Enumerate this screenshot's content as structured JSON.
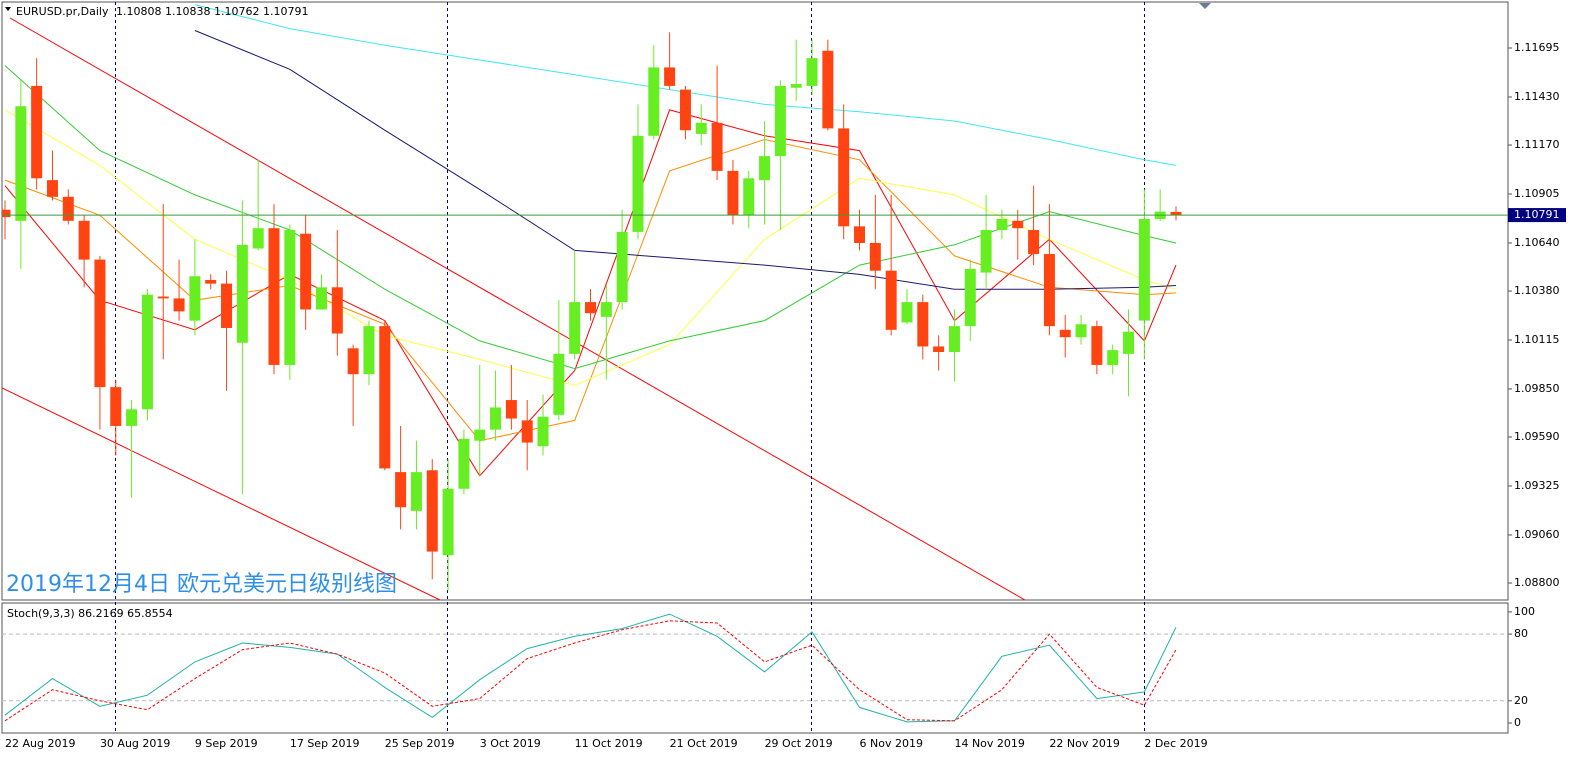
{
  "chart_data": [
    {
      "type": "candlestick",
      "symbol": "EURUSD.pr,Daily",
      "annotation": "2019年12月4日 欧元兑美元日级别线图",
      "categories": [
        "22 Aug 2019",
        null,
        null,
        null,
        null,
        null,
        "30 Aug 2019",
        null,
        null,
        null,
        null,
        null,
        "9 Sep 2019",
        null,
        null,
        null,
        null,
        null,
        "17 Sep 2019",
        null,
        null,
        null,
        null,
        null,
        "25 Sep 2019",
        null,
        null,
        null,
        null,
        null,
        "3 Oct 2019",
        null,
        null,
        null,
        null,
        null,
        "11 Oct 2019",
        null,
        null,
        null,
        null,
        null,
        "21 Oct 2019",
        null,
        null,
        null,
        null,
        null,
        "29 Oct 2019",
        null,
        null,
        null,
        null,
        null,
        "6 Nov 2019",
        null,
        null,
        null,
        null,
        null,
        "14 Nov 2019",
        null,
        null,
        null,
        null,
        null,
        "22 Nov 2019",
        null,
        null,
        null,
        null,
        null,
        "2 Dec 2019",
        null,
        null
      ],
      "open": [
        1.1082,
        1.1076,
        1.1149,
        1.1098,
        1.1089,
        1.1076,
        1.1055,
        1.0986,
        1.0965,
        1.0974,
        1.1035,
        1.1034,
        1.1022,
        1.1044,
        1.1042,
        1.101,
        1.1061,
        1.1072,
        1.0998,
        1.1069,
        1.1028,
        1.104,
        1.1007,
        1.0993,
        1.1019,
        1.094,
        1.0919,
        1.0941,
        1.0895,
        1.0931,
        1.0957,
        1.0963,
        1.0979,
        1.0968,
        1.0954,
        1.0971,
        1.1004,
        1.1032,
        1.1024,
        1.1032,
        1.107,
        1.1122,
        1.1159,
        1.1147,
        1.1123,
        1.1129,
        1.1103,
        1.1079,
        1.1098,
        1.1111,
        1.1148,
        1.1149,
        1.1168,
        1.1126,
        1.1073,
        1.1064,
        1.1049,
        1.1021,
        1.1032,
        1.1008,
        1.1005,
        1.1019,
        1.1048,
        1.1071,
        1.1076,
        1.1071,
        1.1058,
        1.1017,
        1.1013,
        1.1019,
        1.0998,
        1.1004,
        1.1022,
        1.1077,
        1.10808
      ],
      "high": [
        1.1087,
        1.1152,
        1.1164,
        1.1114,
        1.1093,
        1.1079,
        1.1057,
        1.099,
        1.0979,
        1.1039,
        1.1085,
        1.1055,
        1.1066,
        1.1047,
        1.1049,
        1.1087,
        1.1109,
        1.1085,
        1.1074,
        1.1079,
        1.1047,
        1.1071,
        1.1009,
        1.1022,
        1.1022,
        1.0965,
        1.0957,
        1.0947,
        1.0947,
        1.0963,
        1.0998,
        1.0995,
        1.0998,
        1.0979,
        1.0982,
        1.1033,
        1.106,
        1.1039,
        1.1041,
        1.1082,
        1.1139,
        1.1171,
        1.1178,
        1.1149,
        1.1139,
        1.116,
        1.1109,
        1.1103,
        1.113,
        1.1152,
        1.1174,
        1.1174,
        1.1174,
        1.1139,
        1.1082,
        1.109,
        1.109,
        1.1039,
        1.1036,
        1.1014,
        1.1028,
        1.1055,
        1.109,
        1.1082,
        1.1082,
        1.1095,
        1.1085,
        1.1025,
        1.1025,
        1.1022,
        1.1009,
        1.1028,
        1.1093,
        1.1093,
        1.10838
      ],
      "low": [
        1.1066,
        1.105,
        1.1093,
        1.1087,
        1.1074,
        1.104,
        1.0963,
        1.0949,
        1.0926,
        1.0968,
        1.1001,
        1.1022,
        1.1014,
        1.1039,
        1.0984,
        1.0928,
        1.106,
        1.0993,
        1.099,
        1.1017,
        1.1028,
        1.1003,
        1.0965,
        1.0987,
        1.0941,
        1.0909,
        1.0909,
        1.0882,
        1.0876,
        1.0928,
        1.0938,
        1.0957,
        1.0963,
        1.0941,
        1.0949,
        1.0968,
        1.1001,
        1.1022,
        1.099,
        1.1028,
        1.1066,
        1.112,
        1.1147,
        1.112,
        1.1117,
        1.1098,
        1.1074,
        1.1072,
        1.1074,
        1.1071,
        1.1141,
        1.1144,
        1.1125,
        1.1066,
        1.106,
        1.1039,
        1.1014,
        1.102,
        1.1001,
        1.0995,
        1.0989,
        1.1011,
        1.1039,
        1.1066,
        1.1055,
        1.1052,
        1.1014,
        1.1002,
        1.1009,
        1.0993,
        1.0993,
        1.0981,
        1.1001,
        1.1076,
        1.10762
      ],
      "close": [
        1.1078,
        1.1138,
        1.1099,
        1.1089,
        1.1076,
        1.1055,
        1.0986,
        1.0965,
        1.0974,
        1.1036,
        1.1034,
        1.1027,
        1.1046,
        1.1042,
        1.1018,
        1.1063,
        1.1072,
        1.0998,
        1.1071,
        1.1028,
        1.104,
        1.1015,
        1.0993,
        1.1019,
        1.0942,
        1.0921,
        1.094,
        1.0897,
        1.0931,
        1.0958,
        1.0963,
        1.0975,
        1.0969,
        1.0956,
        1.097,
        1.1004,
        1.1032,
        1.1026,
        1.1032,
        1.107,
        1.1122,
        1.1159,
        1.1149,
        1.1125,
        1.1129,
        1.1103,
        1.1079,
        1.1099,
        1.1111,
        1.1149,
        1.115,
        1.1164,
        1.1126,
        1.1073,
        1.1064,
        1.1049,
        1.1017,
        1.1032,
        1.1008,
        1.1005,
        1.1019,
        1.105,
        1.1071,
        1.1077,
        1.1072,
        1.1058,
        1.1019,
        1.1013,
        1.102,
        1.0998,
        1.1006,
        1.1016,
        1.1077,
        1.1081,
        1.10791
      ],
      "up_color": "#66ee22",
      "down_color": "#ff4411",
      "last_price_color": "#3a9a3a",
      "last_price_label_color": "#000080",
      "ylim": [
        1.08708,
        1.11944
      ],
      "yticks": [
        1.11695,
        {
          "value": 1.1143,
          "label": "1.11430"
        },
        {
          "value": 1.1117,
          "label": "1.11170"
        },
        1.10905,
        {
          "value": 1.1064,
          "label": "1.10640"
        },
        {
          "value": 1.1038,
          "label": "1.10380"
        },
        1.10115,
        {
          "value": 1.0985,
          "label": "1.09850"
        },
        {
          "value": 1.0959,
          "label": "1.09590"
        },
        1.09325,
        {
          "value": 1.0906,
          "label": "1.09060"
        },
        {
          "value": 1.088,
          "label": "1.08800"
        }
      ],
      "moving_averages": [
        {
          "color": "#ff0000",
          "x": [
            0,
            6,
            12,
            18,
            24,
            30,
            36,
            42,
            48,
            54,
            60,
            66,
            72,
            74
          ],
          "values": [
            1.1095,
            1.1033,
            1.1017,
            1.1047,
            1.1022,
            1.0938,
            1.0995,
            1.1136,
            1.1122,
            1.1114,
            1.1022,
            1.1066,
            1.1011,
            1.1052
          ]
        },
        {
          "color": "#ff8c00",
          "x": [
            0,
            6,
            12,
            18,
            24,
            30,
            36,
            42,
            48,
            54,
            60,
            66,
            72,
            74
          ],
          "values": [
            1.1098,
            1.1079,
            1.1033,
            1.1041,
            1.102,
            1.0957,
            1.0968,
            1.1103,
            1.112,
            1.1109,
            1.1057,
            1.104,
            1.1036,
            1.1037
          ]
        },
        {
          "color": "#ffff44",
          "x": [
            0,
            6,
            12,
            18,
            24,
            30,
            36,
            42,
            48,
            54,
            60,
            66,
            72,
            74
          ],
          "values": [
            1.1136,
            1.1106,
            1.1066,
            1.1044,
            1.1014,
            1.1001,
            1.0987,
            1.1009,
            1.1066,
            1.1099,
            1.109,
            1.1066,
            1.1044,
            1.1039
          ]
        },
        {
          "color": "#33cc33",
          "x": [
            0,
            6,
            12,
            18,
            24,
            30,
            36,
            42,
            48,
            54,
            60,
            66,
            72,
            74
          ],
          "values": [
            1.116,
            1.1114,
            1.109,
            1.1071,
            1.1039,
            1.1011,
            1.0996,
            1.1011,
            1.1022,
            1.1052,
            1.1063,
            1.1081,
            1.1068,
            1.1064
          ]
        },
        {
          "color": "#191970",
          "x": [
            0,
            6,
            12,
            18,
            24,
            30,
            36,
            42,
            48,
            54,
            60,
            66,
            72,
            74
          ],
          "values": [
            null,
            null,
            1.1179,
            1.1158,
            1.1125,
            1.1093,
            1.106,
            1.1056,
            1.1052,
            1.1047,
            1.1039,
            1.1039,
            1.104,
            1.1041
          ]
        },
        {
          "color": "#40e8f0",
          "x": [
            0,
            6,
            12,
            18,
            24,
            30,
            36,
            42,
            48,
            54,
            60,
            66,
            72,
            74
          ],
          "values": [
            null,
            null,
            1.1193,
            1.118,
            1.1171,
            1.1163,
            1.1155,
            1.1147,
            1.1139,
            1.1135,
            1.113,
            1.112,
            1.1109,
            1.1106
          ]
        }
      ]
    },
    {
      "type": "stochastic",
      "title": "Stoch(9,3,3)",
      "x": [
        0,
        3,
        6,
        9,
        12,
        15,
        18,
        21,
        24,
        27,
        30,
        33,
        36,
        39,
        42,
        45,
        48,
        51,
        54,
        57,
        60,
        63,
        66,
        69,
        72,
        74
      ],
      "series": [
        {
          "color": "#20b2aa",
          "dashed": false,
          "values": [
            7,
            40,
            15,
            25,
            55,
            72,
            68,
            62,
            32,
            5,
            39,
            67,
            78,
            85,
            98,
            78,
            46,
            82,
            14,
            1,
            2,
            60,
            70,
            22,
            28,
            86.2169
          ]
        },
        {
          "color": "#ff0000",
          "dashed": true,
          "values": [
            2,
            30,
            20,
            12,
            40,
            66,
            72,
            62,
            45,
            15,
            22,
            58,
            72,
            84,
            92,
            90,
            55,
            70,
            30,
            3,
            2,
            30,
            80,
            32,
            16,
            65.8554
          ]
        }
      ],
      "ylim": [
        -9,
        108
      ],
      "yticks": [
        100,
        80,
        20,
        0
      ],
      "levels": [
        80,
        20
      ]
    }
  ]
}
